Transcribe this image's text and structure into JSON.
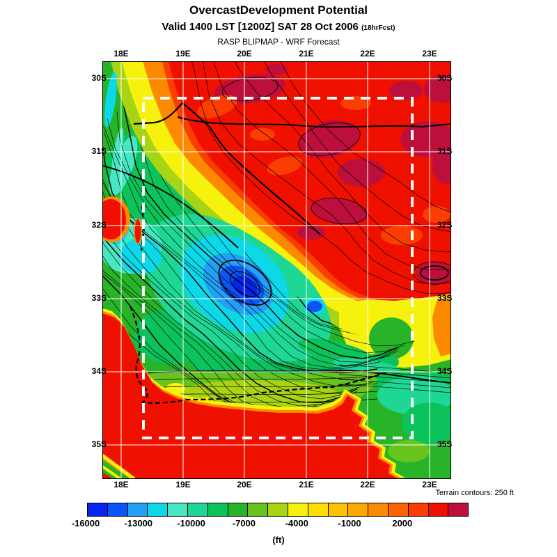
{
  "header": {
    "title": "OvercastDevelopment Potential",
    "valid_line": "Valid 1400 LST [1200Z] SAT 28 Oct 2006",
    "fcst_tag": "(18hrFcst)",
    "model_line": "RASP BLIPMAP - WRF Forecast"
  },
  "map": {
    "lon_labels": [
      "18E",
      "19E",
      "20E",
      "21E",
      "22E",
      "23E"
    ],
    "lat_labels": [
      "30S",
      "31S",
      "32S",
      "33S",
      "34S",
      "35S"
    ],
    "terrain_note": "Terrain contours: 250 ft"
  },
  "colorbar": {
    "tick_labels": [
      "-16000",
      "-13000",
      "-10000",
      "-7000",
      "-4000",
      "-1000",
      "2000"
    ],
    "unit_label": "(ft)"
  },
  "chart_data": {
    "type": "heatmap",
    "subtype": "filled_contour_weather_map",
    "title": "OvercastDevelopment Potential",
    "valid": "Valid 1400 LST [1200Z] SAT 28 Oct 2006 (18hrFcst)",
    "source": "RASP BLIPMAP - WRF Forecast",
    "units": "ft",
    "x_axis": {
      "label": "longitude",
      "ticks": [
        "18E",
        "19E",
        "20E",
        "21E",
        "22E",
        "23E"
      ]
    },
    "y_axis": {
      "label": "latitude",
      "ticks": [
        "30S",
        "31S",
        "32S",
        "33S",
        "34S",
        "35S"
      ]
    },
    "colorbar": {
      "tick_values": [
        -16000,
        -13000,
        -10000,
        -7000,
        -4000,
        -1000,
        2000
      ],
      "segment_step_ft": 1000,
      "n_segments": 19,
      "colors": [
        "#0725f0",
        "#0a55f7",
        "#23a0f5",
        "#0cd8e8",
        "#45e8c2",
        "#1fd795",
        "#0cc25a",
        "#28b428",
        "#68c41d",
        "#a8d414",
        "#f7f20d",
        "#fede00",
        "#fdc300",
        "#fda700",
        "#fc8a00",
        "#fb6400",
        "#fa3d00",
        "#f01000",
        "#bc0f3b"
      ]
    },
    "terrain_contour_interval_ft": 250,
    "inner_domain_box": {
      "lon_min_e": 18.4,
      "lon_max_e": 22.7,
      "lat_min_s": 30.3,
      "lat_max_s": 34.9
    },
    "grid_on": true,
    "legend_position": "bottom",
    "estimated_grid_values_ft": {
      "note": "values estimated from fill colors at lat/lon grid intersections",
      "lons_e": [
        18,
        19,
        20,
        21,
        22,
        23
      ],
      "rows": [
        {
          "lat": "30S",
          "values": [
            -5500,
            2000,
            2500,
            2000,
            2000,
            2000
          ]
        },
        {
          "lat": "31S",
          "values": [
            -11000,
            -9500,
            1500,
            2000,
            2000,
            2000
          ]
        },
        {
          "lat": "32S",
          "values": [
            2000,
            -12000,
            -5500,
            2000,
            2500,
            2000
          ]
        },
        {
          "lat": "33S",
          "values": [
            -10000,
            -11000,
            -13000,
            -9000,
            -4500,
            -3000
          ]
        },
        {
          "lat": "34S",
          "values": [
            2000,
            -7000,
            -7500,
            -8000,
            -8500,
            -9000
          ]
        },
        {
          "lat": "35S",
          "values": [
            2000,
            2000,
            2000,
            2000,
            1000,
            -8000
          ]
        }
      ]
    },
    "features": [
      "Large red/maroon maximum (~2000+ ft) over northeast half of domain",
      "Deep blue minimum (~-16000 ft) near 19.8E 32.8S in mountain band",
      "Diagonal green/cyan band of low values from northwest to south-central area",
      "Red ocean areas southwest and south of the coastline (~2000 ft)",
      "Green area over southeast corner near 23E 35S",
      "White dashed inner model-domain rectangle",
      "Black terrain contour lines at 250 ft interval, dashed coastline"
    ]
  }
}
